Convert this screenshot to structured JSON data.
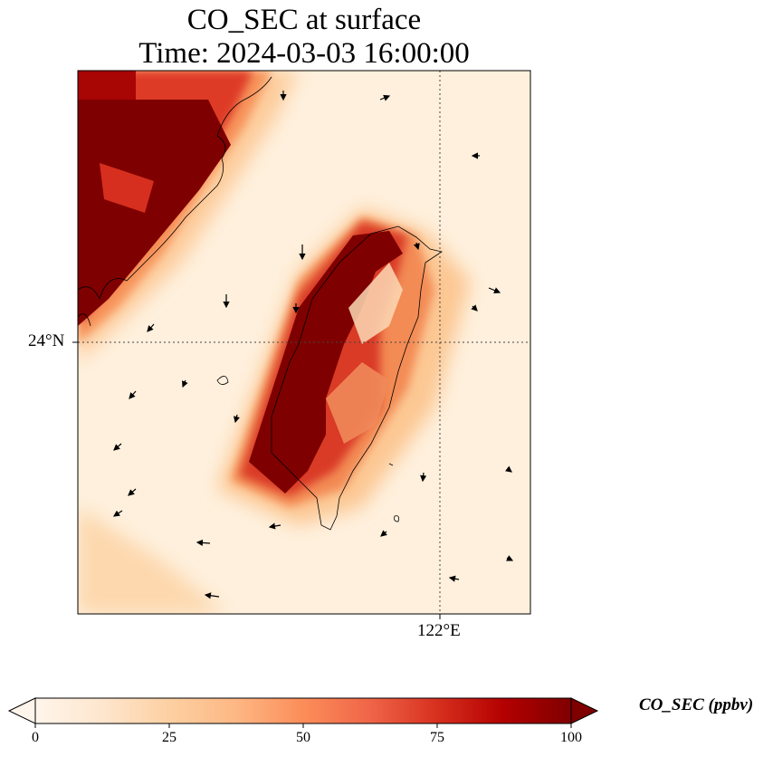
{
  "title": {
    "line1": "CO_SEC at surface",
    "line2": "Time: 2024-03-03 16:00:00"
  },
  "axes": {
    "lat_tick": "24°N",
    "lon_tick": "122°E"
  },
  "colorbar": {
    "label": "CO_SEC (ppbv)",
    "ticks": [
      "0",
      "25",
      "50",
      "75",
      "100"
    ],
    "min": 0,
    "max": 100,
    "extend": "both",
    "colormap": [
      "#fff5eb",
      "#fee6ce",
      "#fdd0a2",
      "#fdae6b",
      "#fd8d3c",
      "#f16913",
      "#d94801",
      "#a63603",
      "#7f0000"
    ]
  }
}
